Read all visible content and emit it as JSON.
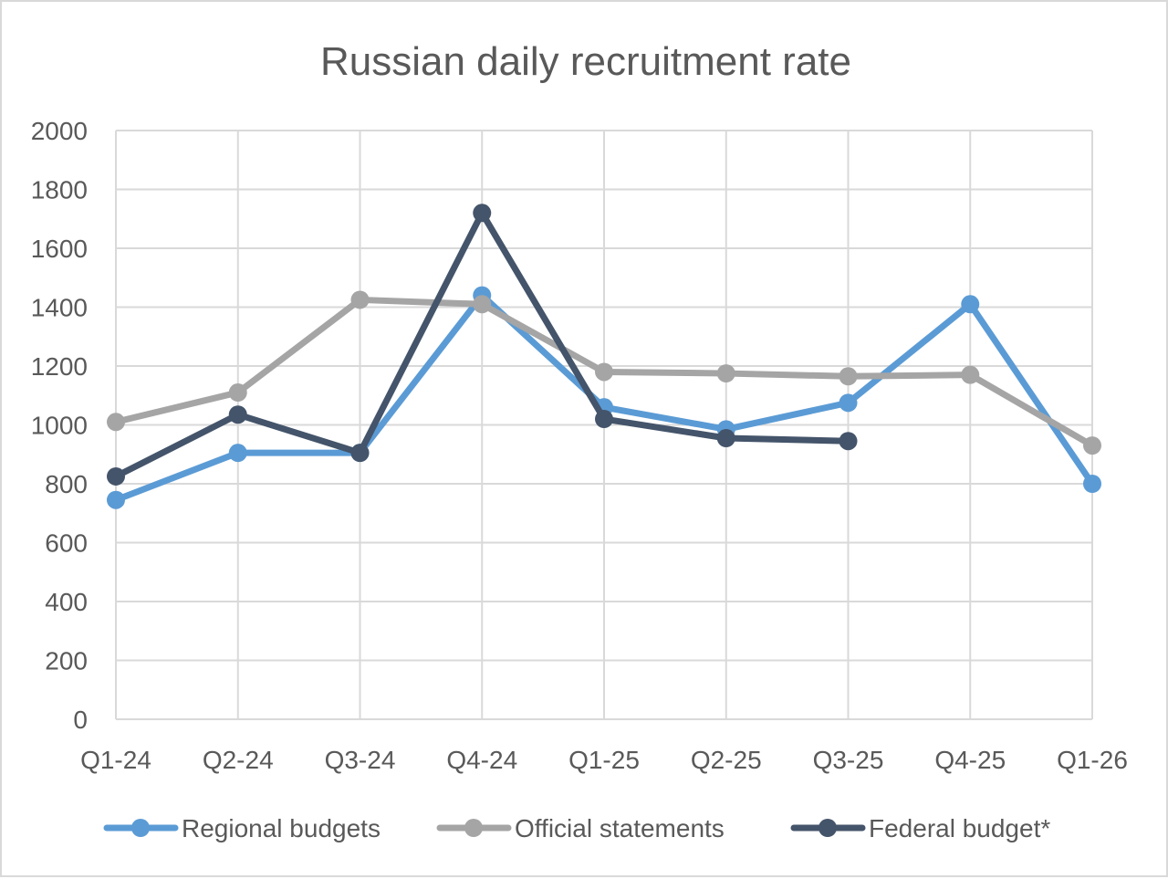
{
  "chart_data": {
    "type": "line",
    "title": "Russian daily recruitment rate",
    "xlabel": "",
    "ylabel": "",
    "categories": [
      "Q1-24",
      "Q2-24",
      "Q3-24",
      "Q4-24",
      "Q1-25",
      "Q2-25",
      "Q3-25",
      "Q4-25",
      "Q1-26"
    ],
    "ylim": [
      0,
      2000
    ],
    "yticks": [
      0,
      200,
      400,
      600,
      800,
      1000,
      1200,
      1400,
      1600,
      1800,
      2000
    ],
    "grid": true,
    "legend_position": "bottom",
    "series": [
      {
        "name": "Regional budgets",
        "color": "#5b9bd5",
        "values": [
          745,
          905,
          905,
          1440,
          1060,
          985,
          1075,
          1410,
          800
        ]
      },
      {
        "name": "Official statements",
        "color": "#a5a5a5",
        "values": [
          1010,
          1110,
          1425,
          1410,
          1180,
          1175,
          1165,
          1170,
          930
        ]
      },
      {
        "name": "Federal budget*",
        "color": "#44546a",
        "values": [
          825,
          1035,
          905,
          1720,
          1020,
          955,
          945,
          null,
          null
        ]
      }
    ]
  }
}
